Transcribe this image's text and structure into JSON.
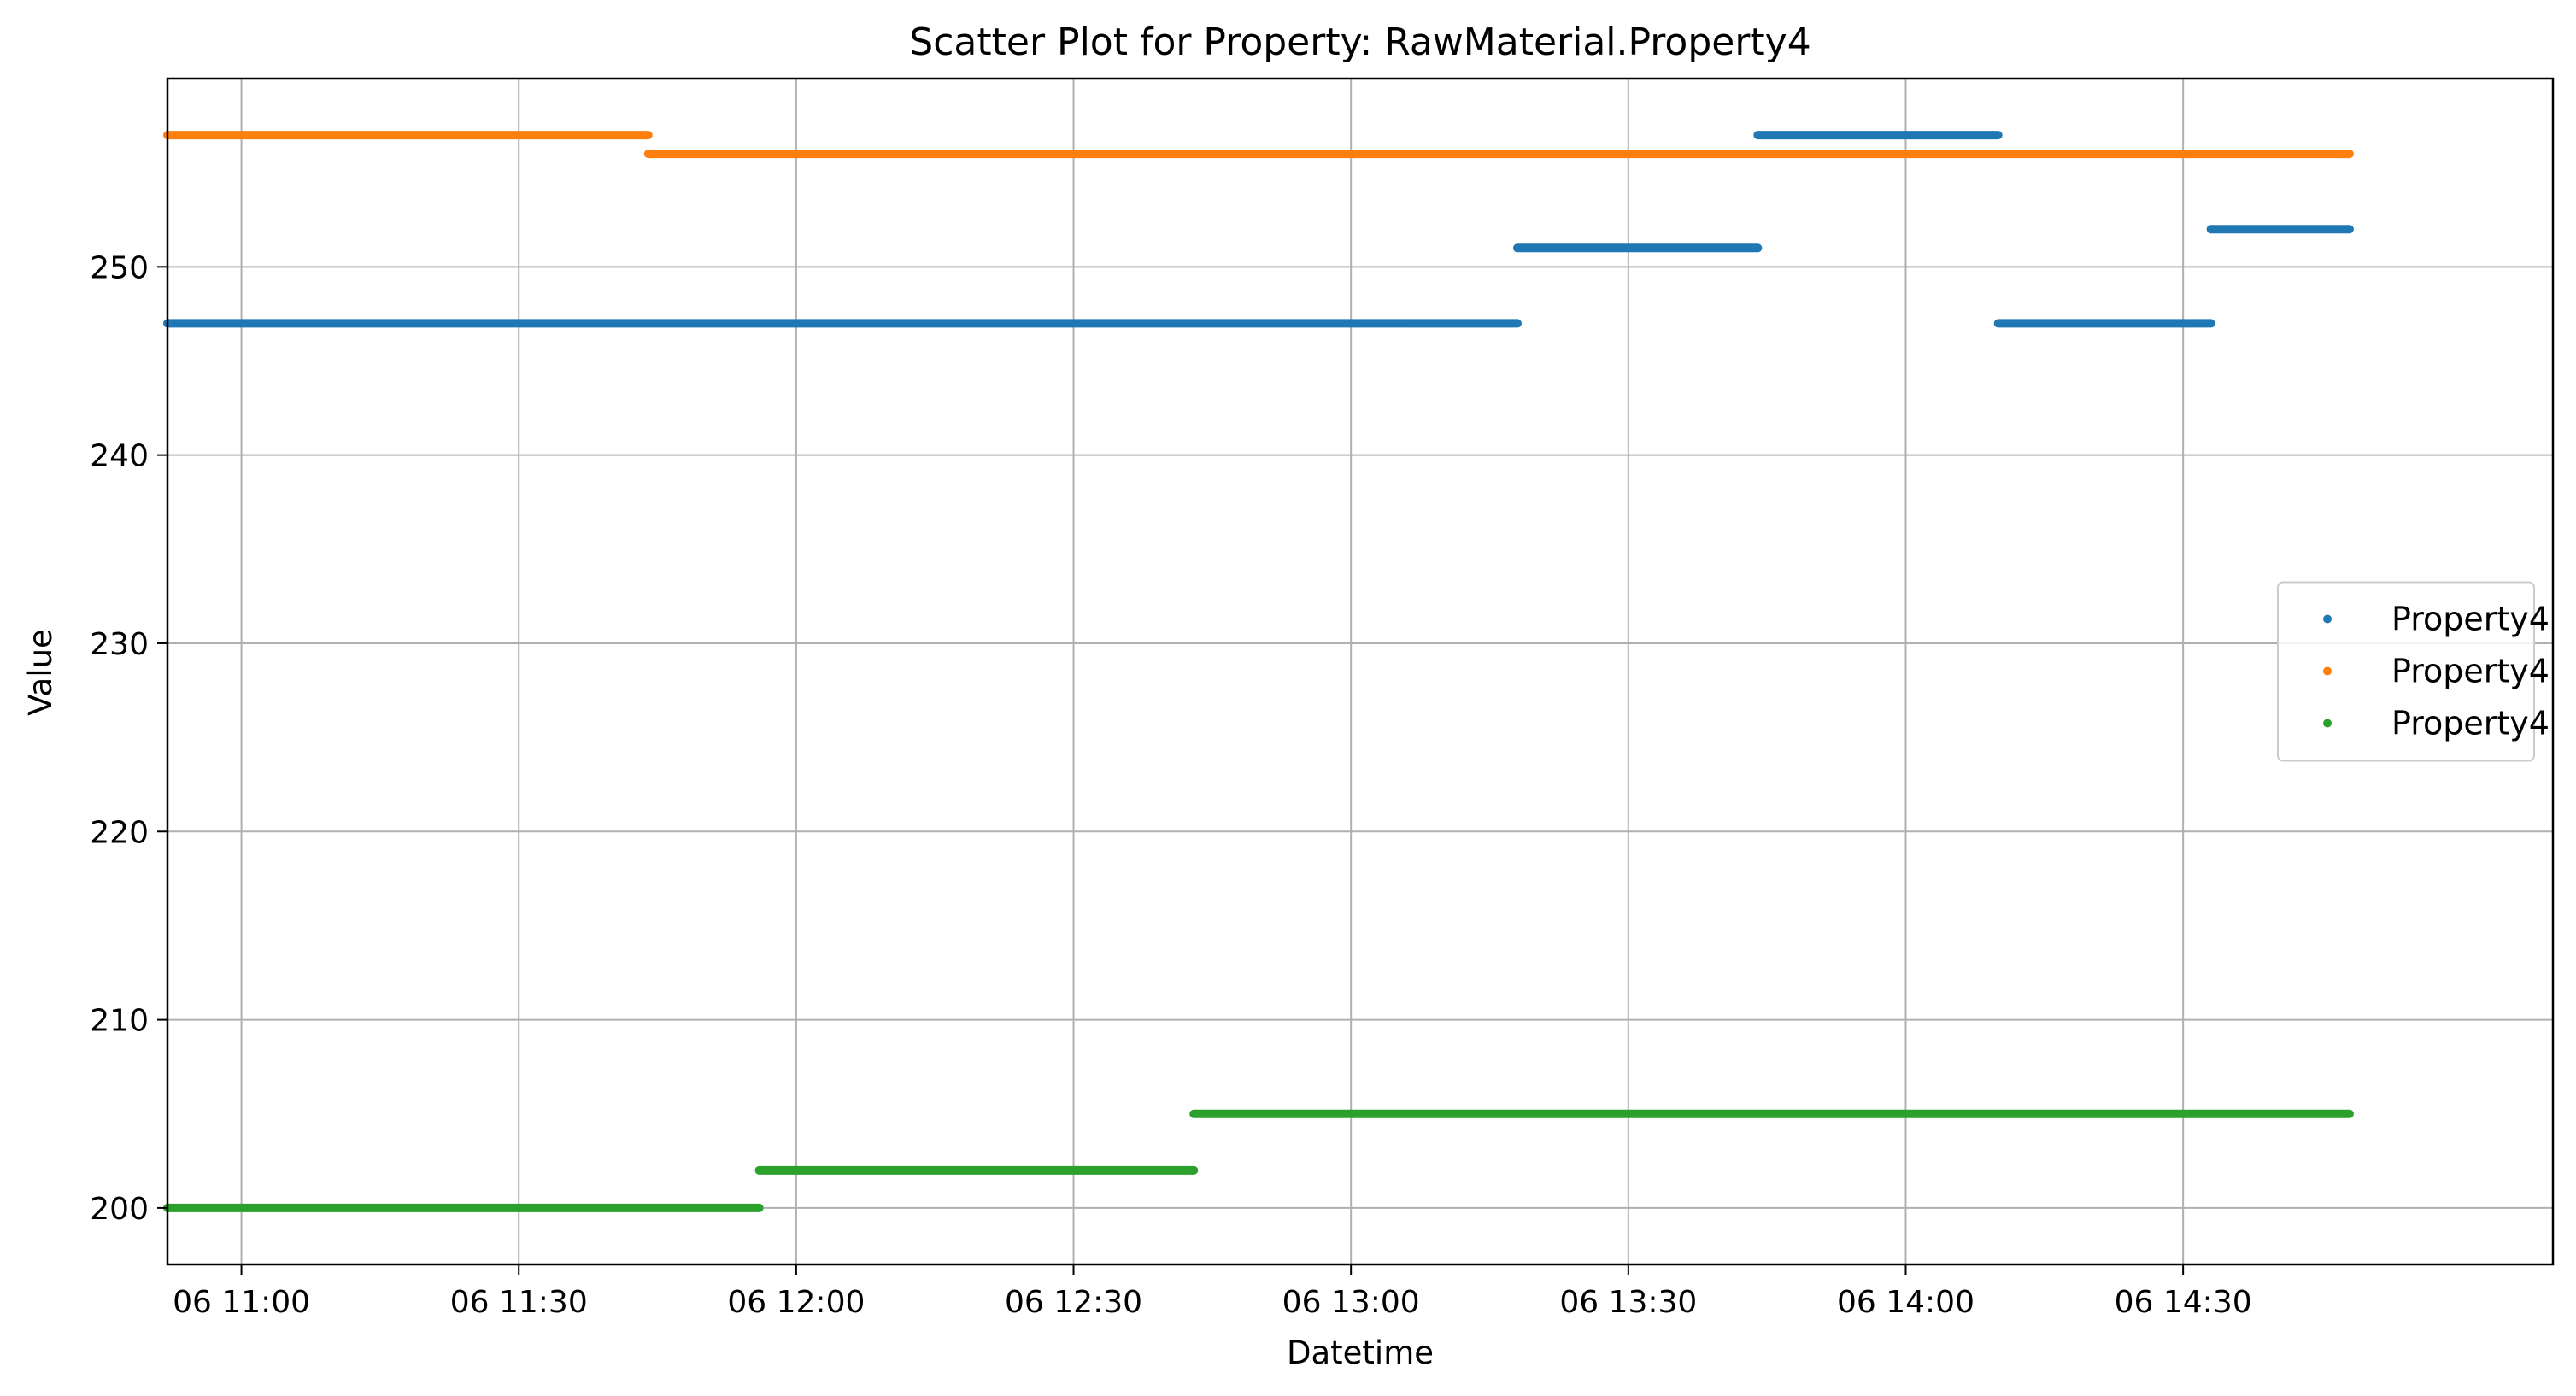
{
  "chart_data": {
    "type": "scatter",
    "title": "Scatter Plot for Property: RawMaterial.Property4",
    "xlabel": "Datetime",
    "ylabel": "Value",
    "xlim": [
      "06 10:52",
      "06 15:10"
    ],
    "ylim": [
      197,
      260
    ],
    "x_ticks": [
      "06 11:00",
      "06 11:30",
      "06 12:00",
      "06 12:30",
      "06 13:00",
      "06 13:30",
      "06 14:00",
      "06 14:30"
    ],
    "y_ticks": [
      200,
      210,
      220,
      230,
      240,
      250
    ],
    "grid": true,
    "legend_position": "center-right",
    "series": [
      {
        "name": "Property4",
        "color": "#1f77b4",
        "segments": [
          {
            "x_start": "06 10:52",
            "x_end": "06 13:18",
            "y": 247
          },
          {
            "x_start": "06 13:18",
            "x_end": "06 13:44",
            "y": 251
          },
          {
            "x_start": "06 13:44",
            "x_end": "06 14:10",
            "y": 257
          },
          {
            "x_start": "06 14:10",
            "x_end": "06 14:33",
            "y": 247
          },
          {
            "x_start": "06 14:33",
            "x_end": "06 14:48",
            "y": 252
          }
        ]
      },
      {
        "name": "Property4",
        "color": "#ff7f0e",
        "segments": [
          {
            "x_start": "06 10:52",
            "x_end": "06 11:44",
            "y": 257
          },
          {
            "x_start": "06 11:44",
            "x_end": "06 14:48",
            "y": 256
          }
        ]
      },
      {
        "name": "Property4",
        "color": "#2ca02c",
        "segments": [
          {
            "x_start": "06 10:52",
            "x_end": "06 11:56",
            "y": 200
          },
          {
            "x_start": "06 11:56",
            "x_end": "06 12:43",
            "y": 202
          },
          {
            "x_start": "06 12:43",
            "x_end": "06 14:48",
            "y": 205
          }
        ]
      }
    ]
  }
}
